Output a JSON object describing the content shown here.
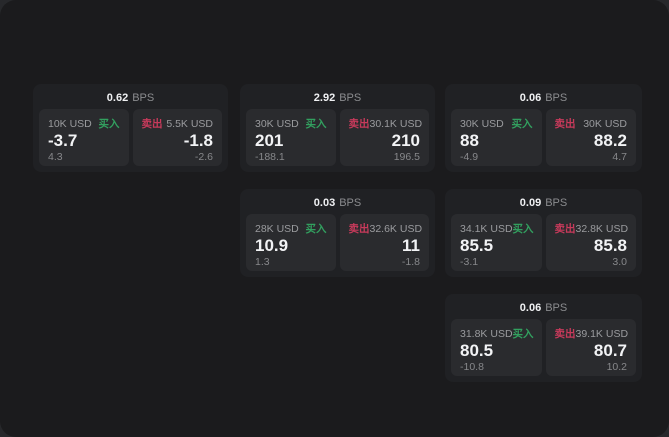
{
  "labels": {
    "bps_unit": "BPS",
    "buy": "买入",
    "sell": "卖出"
  },
  "colors": {
    "backdrop": "#27282b",
    "panel": "#1b1b1d",
    "card": "#202124",
    "quote_tile": "#2a2b2e",
    "text_primary": "#f2f3f5",
    "text_secondary": "#9a9b9e",
    "text_muted": "#87888b",
    "buy_green": "#32a05f",
    "sell_red": "#c83a5b"
  },
  "cards": [
    {
      "bps": "0.62",
      "col": 0,
      "row": 0,
      "buy": {
        "size": "10K USD",
        "price": "-3.7",
        "delta": "4.3"
      },
      "sell": {
        "size": "5.5K USD",
        "price": "-1.8",
        "delta": "-2.6"
      }
    },
    {
      "bps": "2.92",
      "col": 1,
      "row": 0,
      "buy": {
        "size": "30K USD",
        "price": "201",
        "delta": "-188.1"
      },
      "sell": {
        "size": "30.1K USD",
        "price": "210",
        "delta": "196.5"
      }
    },
    {
      "bps": "0.06",
      "col": 2,
      "row": 0,
      "buy": {
        "size": "30K USD",
        "price": "88",
        "delta": "-4.9"
      },
      "sell": {
        "size": "30K USD",
        "price": "88.2",
        "delta": "4.7"
      }
    },
    {
      "bps": "0.03",
      "col": 1,
      "row": 1,
      "buy": {
        "size": "28K USD",
        "price": "10.9",
        "delta": "1.3"
      },
      "sell": {
        "size": "32.6K USD",
        "price": "11",
        "delta": "-1.8"
      }
    },
    {
      "bps": "0.09",
      "col": 2,
      "row": 1,
      "buy": {
        "size": "34.1K USD",
        "price": "85.5",
        "delta": "-3.1"
      },
      "sell": {
        "size": "32.8K USD",
        "price": "85.8",
        "delta": "3.0"
      }
    },
    {
      "bps": "0.06",
      "col": 2,
      "row": 2,
      "buy": {
        "size": "31.8K USD",
        "price": "80.5",
        "delta": "-10.8"
      },
      "sell": {
        "size": "39.1K USD",
        "price": "80.7",
        "delta": "10.2"
      }
    }
  ]
}
